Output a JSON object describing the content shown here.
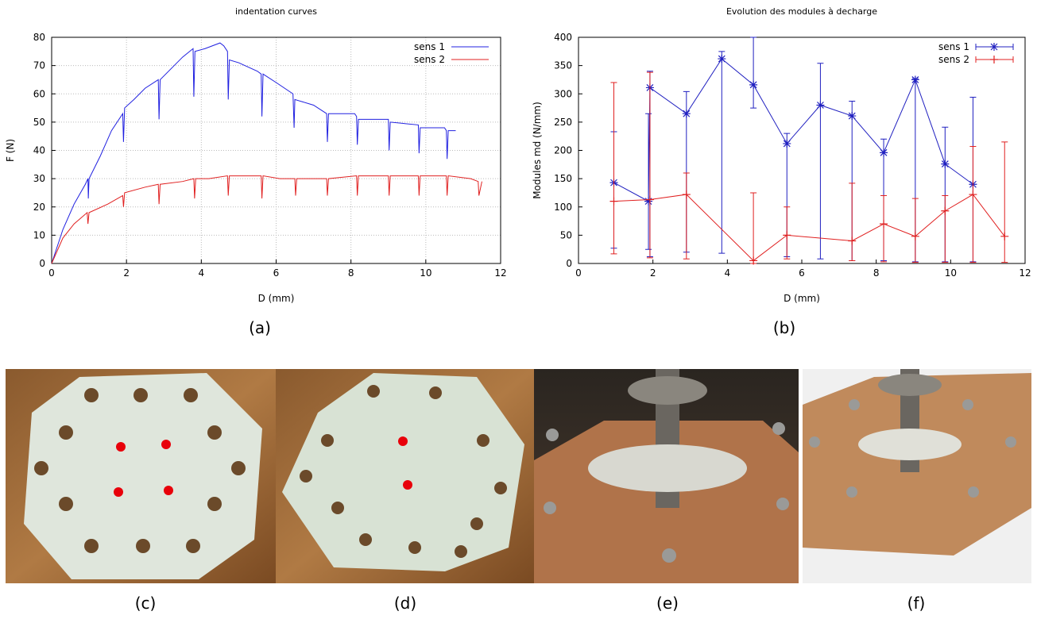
{
  "chart_data": [
    {
      "type": "line",
      "title": "indentation curves",
      "xlabel": "D (mm)",
      "ylabel": "F (N)",
      "caption": "(a)",
      "xlim": [
        0,
        12
      ],
      "xticks": [
        0,
        2,
        4,
        6,
        8,
        10,
        12
      ],
      "ylim": [
        0,
        80
      ],
      "yticks": [
        0,
        10,
        20,
        30,
        40,
        50,
        60,
        70,
        80
      ],
      "grid": true,
      "legend": "upper right",
      "series": [
        {
          "name": "sens 1",
          "color": "#2020e0",
          "x": [
            0,
            0.3,
            0.6,
            0.9,
            0.97,
            0.98,
            1.0,
            1.3,
            1.6,
            1.9,
            1.92,
            1.95,
            2.2,
            2.5,
            2.85,
            2.87,
            2.9,
            3.2,
            3.5,
            3.78,
            3.8,
            3.83,
            4.1,
            4.5,
            4.6,
            4.7,
            4.72,
            4.75,
            5.0,
            5.5,
            5.6,
            5.62,
            5.65,
            6.0,
            6.45,
            6.48,
            6.5,
            7.0,
            7.35,
            7.37,
            7.4,
            8.1,
            8.15,
            8.17,
            8.2,
            9.0,
            9.02,
            9.05,
            9.8,
            9.82,
            9.85,
            10.5,
            10.55,
            10.57,
            10.6,
            10.8
          ],
          "values": [
            0,
            12,
            21,
            28,
            30,
            23,
            30,
            38,
            47,
            53,
            43,
            55,
            58,
            62,
            65,
            51,
            65,
            69,
            73,
            76,
            59,
            75,
            76,
            78,
            77,
            75,
            58,
            72,
            71,
            68,
            67,
            52,
            67,
            64,
            60,
            48,
            58,
            56,
            53,
            43,
            53,
            53,
            52,
            42,
            51,
            51,
            40,
            50,
            49,
            39,
            48,
            48,
            47,
            37,
            47,
            47
          ]
        },
        {
          "name": "sens 2",
          "color": "#e02020",
          "x": [
            0,
            0.3,
            0.6,
            0.95,
            0.97,
            1.0,
            1.5,
            1.9,
            1.92,
            1.95,
            2.5,
            2.85,
            2.87,
            2.9,
            3.5,
            3.8,
            3.82,
            3.85,
            4.2,
            4.7,
            4.72,
            4.75,
            5.2,
            5.6,
            5.62,
            5.65,
            6.1,
            6.5,
            6.52,
            6.55,
            7.0,
            7.35,
            7.37,
            7.4,
            8.15,
            8.17,
            8.2,
            9.0,
            9.02,
            9.05,
            9.8,
            9.82,
            9.85,
            10.55,
            10.57,
            10.6,
            11.2,
            11.4,
            11.42,
            11.5
          ],
          "values": [
            0,
            9,
            14,
            18,
            14,
            18,
            21,
            24,
            20,
            25,
            27,
            28,
            21,
            28,
            29,
            30,
            23,
            30,
            30,
            31,
            24,
            31,
            31,
            31,
            23,
            31,
            30,
            30,
            24,
            30,
            30,
            30,
            24,
            30,
            31,
            24,
            31,
            31,
            24,
            31,
            31,
            24,
            31,
            31,
            24,
            31,
            30,
            29,
            24,
            29
          ]
        }
      ]
    },
    {
      "type": "errorbar",
      "title": "Evolution des modules à decharge",
      "xlabel": "D (mm)",
      "ylabel": "Modules md (N/mm)",
      "caption": "(b)",
      "xlim": [
        0,
        12
      ],
      "xticks": [
        0,
        2,
        4,
        6,
        8,
        10,
        12
      ],
      "ylim": [
        0,
        400
      ],
      "yticks": [
        0,
        50,
        100,
        150,
        200,
        250,
        300,
        350,
        400
      ],
      "grid": false,
      "legend": "upper right",
      "series": [
        {
          "name": "sens 1",
          "color": "#2020c0",
          "marker": "star",
          "x": [
            0.95,
            1.88,
            1.92,
            2.9,
            3.85,
            4.7,
            5.6,
            6.5,
            7.35,
            8.2,
            9.05,
            9.85,
            10.6
          ],
          "values": [
            143,
            110,
            311,
            265,
            362,
            316,
            212,
            280,
            261,
            196,
            325,
            176,
            140
          ],
          "lower": [
            27,
            25,
            12,
            20,
            18,
            275,
            12,
            8,
            5,
            5,
            3,
            3,
            3
          ],
          "upper": [
            233,
            265,
            340,
            304,
            375,
            400,
            230,
            354,
            287,
            220,
            327,
            241,
            294
          ]
        },
        {
          "name": "sens 2",
          "color": "#e02020",
          "marker": "plus",
          "x": [
            0.95,
            1.92,
            2.9,
            4.7,
            5.6,
            7.35,
            8.2,
            9.05,
            9.85,
            10.6,
            11.45
          ],
          "values": [
            110,
            113,
            122,
            5,
            50,
            40,
            70,
            48,
            93,
            122,
            48
          ],
          "lower": [
            17,
            10,
            8,
            0,
            8,
            5,
            3,
            2,
            2,
            2,
            2
          ],
          "upper": [
            320,
            338,
            160,
            125,
            100,
            142,
            120,
            115,
            120,
            207,
            215
          ]
        }
      ]
    }
  ],
  "photos": [
    {
      "caption": "(c)"
    },
    {
      "caption": "(d)"
    },
    {
      "caption": "(e)"
    },
    {
      "caption": "(f)"
    }
  ]
}
